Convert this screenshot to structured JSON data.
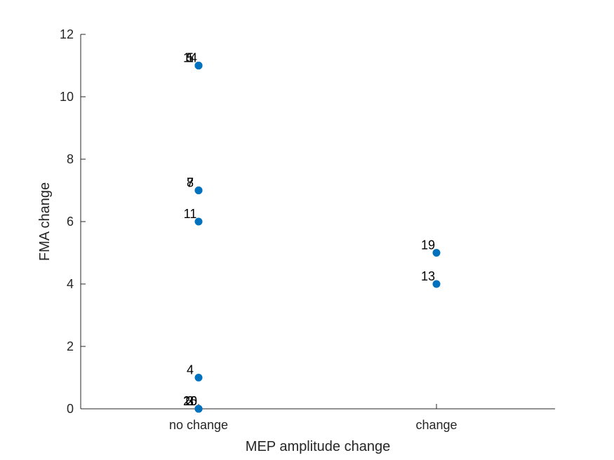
{
  "chart_data": {
    "type": "scatter",
    "title": "",
    "xlabel": "MEP amplitude change",
    "ylabel": "FMA change",
    "categories": [
      "no change",
      "change"
    ],
    "ylim": [
      0,
      12
    ],
    "yticks": [
      "0",
      "2",
      "4",
      "6",
      "8",
      "10",
      "12"
    ],
    "grid": false,
    "colors": {
      "marker": "#0072BD",
      "axis": "#262626"
    },
    "points": [
      {
        "x": "no change",
        "y": 11,
        "label": "14"
      },
      {
        "x": "no change",
        "y": 11,
        "label": "5"
      },
      {
        "x": "no change",
        "y": 11,
        "label": "1"
      },
      {
        "x": "no change",
        "y": 7,
        "label": "7"
      },
      {
        "x": "no change",
        "y": 7,
        "label": "8"
      },
      {
        "x": "no change",
        "y": 6,
        "label": "11"
      },
      {
        "x": "no change",
        "y": 1,
        "label": "4"
      },
      {
        "x": "no change",
        "y": 0,
        "label": "20"
      },
      {
        "x": "no change",
        "y": 0,
        "label": "16"
      },
      {
        "x": "no change",
        "y": 0,
        "label": "2"
      },
      {
        "x": "no change",
        "y": 0,
        "label": "3"
      },
      {
        "x": "change",
        "y": 5,
        "label": "19"
      },
      {
        "x": "change",
        "y": 4,
        "label": "13"
      }
    ]
  }
}
